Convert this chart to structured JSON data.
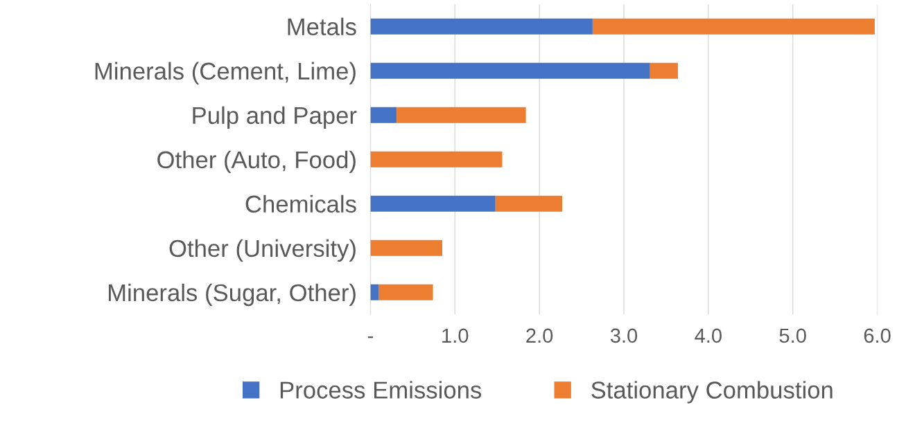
{
  "chart_data": {
    "type": "bar",
    "orientation": "horizontal",
    "stacked": true,
    "categories": [
      "Metals",
      "Minerals (Cement, Lime)",
      "Pulp and Paper",
      "Other (Auto, Food)",
      "Chemicals",
      "Other (University)",
      "Minerals (Sugar, Other)"
    ],
    "series": [
      {
        "name": "Process Emissions",
        "color": "#4472c4",
        "values": [
          2.63,
          3.31,
          0.31,
          0,
          1.48,
          0,
          0.1
        ]
      },
      {
        "name": "Stationary Combustion",
        "color": "#ed7d31",
        "values": [
          3.34,
          0.33,
          1.53,
          1.56,
          0.79,
          0.85,
          0.64
        ]
      }
    ],
    "xlim": [
      0,
      6.0
    ],
    "xticks": [
      {
        "value": 0,
        "label": "-"
      },
      {
        "value": 1,
        "label": "1.0"
      },
      {
        "value": 2,
        "label": "2.0"
      },
      {
        "value": 3,
        "label": "3.0"
      },
      {
        "value": 4,
        "label": "4.0"
      },
      {
        "value": 5,
        "label": "5.0"
      },
      {
        "value": 6,
        "label": "6.0"
      }
    ],
    "grid": "x",
    "legend": "bottom"
  }
}
